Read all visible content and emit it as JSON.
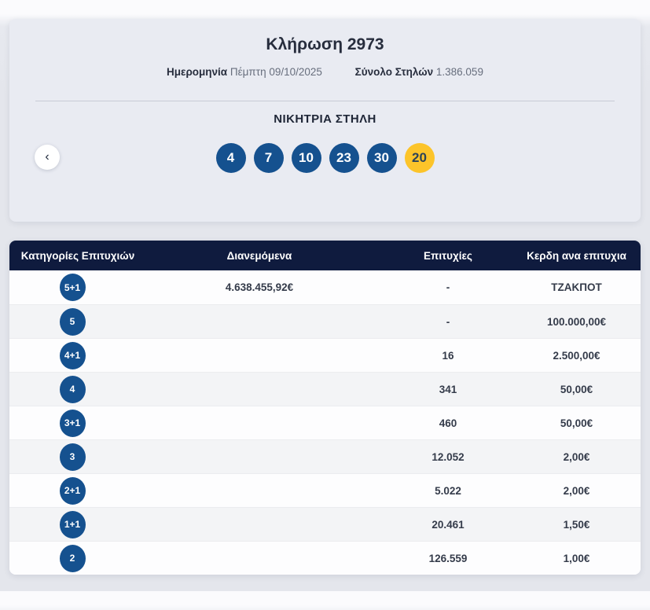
{
  "card": {
    "title": "Κλήρωση 2973",
    "date_label": "Ημερομηνία",
    "date_value": "Πέμπτη 09/10/2025",
    "columns_label": "Σύνολο Στηλών",
    "columns_value": "1.386.059",
    "winning_title": "ΝΙΚΗΤΡΙΑ ΣΤΗΛΗ",
    "prev_button": "‹",
    "balls": [
      {
        "value": "4",
        "type": "main"
      },
      {
        "value": "7",
        "type": "main"
      },
      {
        "value": "10",
        "type": "main"
      },
      {
        "value": "23",
        "type": "main"
      },
      {
        "value": "30",
        "type": "main"
      },
      {
        "value": "20",
        "type": "joker"
      }
    ]
  },
  "colors": {
    "ball_blue": "#15518f",
    "joker_yellow": "#fcc42a",
    "table_header_navy": "#0f1b3e",
    "card_background": "#e9ebf2"
  },
  "table": {
    "headers": [
      "Κατηγορίες Επιτυχιών",
      "Διανεμόμενα",
      "Επιτυχίες",
      "Κερδη ανα επιτυχια"
    ],
    "rows": [
      {
        "category": "5+1",
        "distributed": "4.638.455,92€",
        "wins": "-",
        "prize": "ΤΖΑΚΠΟΤ"
      },
      {
        "category": "5",
        "distributed": "",
        "wins": "-",
        "prize": "100.000,00€"
      },
      {
        "category": "4+1",
        "distributed": "",
        "wins": "16",
        "prize": "2.500,00€"
      },
      {
        "category": "4",
        "distributed": "",
        "wins": "341",
        "prize": "50,00€"
      },
      {
        "category": "3+1",
        "distributed": "",
        "wins": "460",
        "prize": "50,00€"
      },
      {
        "category": "3",
        "distributed": "",
        "wins": "12.052",
        "prize": "2,00€"
      },
      {
        "category": "2+1",
        "distributed": "",
        "wins": "5.022",
        "prize": "2,00€"
      },
      {
        "category": "1+1",
        "distributed": "",
        "wins": "20.461",
        "prize": "1,50€"
      },
      {
        "category": "2",
        "distributed": "",
        "wins": "126.559",
        "prize": "1,00€"
      }
    ]
  }
}
